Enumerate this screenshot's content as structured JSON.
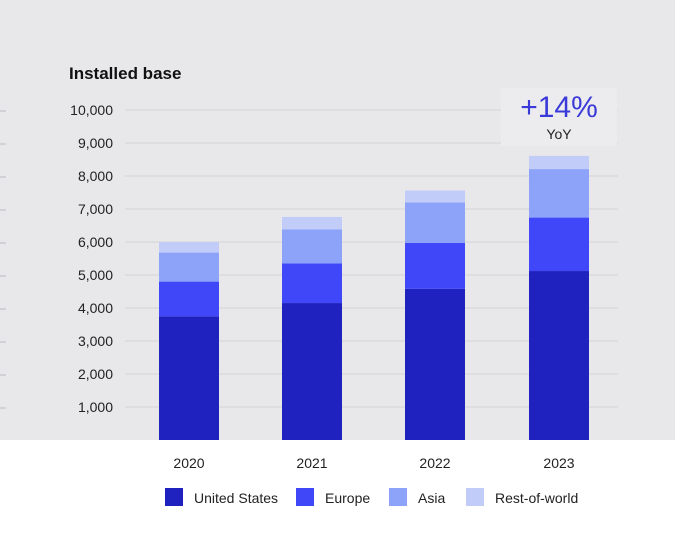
{
  "chart_data": {
    "type": "bar",
    "stacked": true,
    "title": "Installed base",
    "categories": [
      "2020",
      "2021",
      "2022",
      "2023"
    ],
    "series": [
      {
        "name": "United States",
        "color": "#1f22be",
        "values": [
          3750,
          4150,
          4580,
          5120
        ]
      },
      {
        "name": "Europe",
        "color": "#3f47f8",
        "values": [
          1050,
          1200,
          1390,
          1620
        ]
      },
      {
        "name": "Asia",
        "color": "#8ca3f9",
        "values": [
          880,
          1030,
          1230,
          1470
        ]
      },
      {
        "name": "Rest-of-world",
        "color": "#c2ccf9",
        "values": [
          320,
          380,
          360,
          400
        ]
      }
    ],
    "y_ticks": [
      "1,000",
      "2,000",
      "3,000",
      "4,000",
      "5,000",
      "6,000",
      "7,000",
      "8,000",
      "9,000",
      "10,000"
    ],
    "ylim": [
      0,
      10000
    ],
    "grid": true,
    "legend_position": "bottom",
    "annotation": {
      "value": "+14%",
      "label": "YoY"
    }
  }
}
